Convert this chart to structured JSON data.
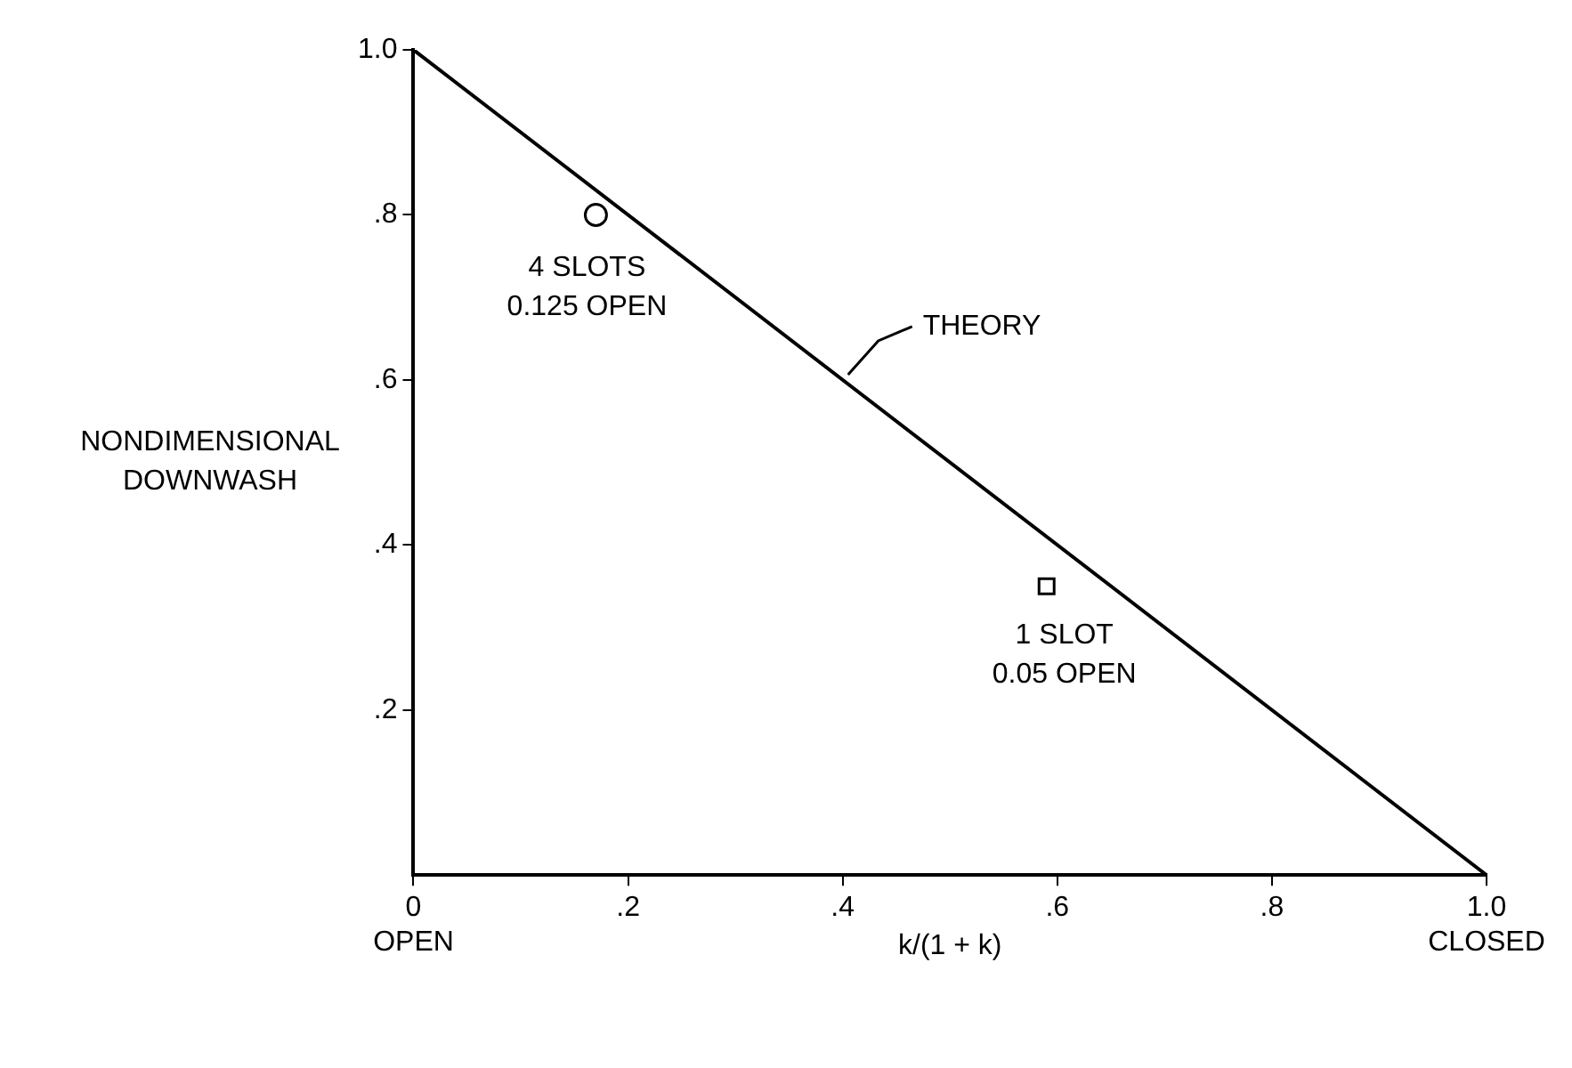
{
  "chart_data": {
    "type": "scatter",
    "xlabel": "k/(1 + k)",
    "ylabel": "NONDIMENSIONAL\nDOWNWASH",
    "xlim": [
      0,
      1
    ],
    "ylim": [
      0,
      1
    ],
    "xticks": [
      {
        "value": 0,
        "label": "0\nOPEN"
      },
      {
        "value": 0.2,
        "label": ".2"
      },
      {
        "value": 0.4,
        "label": ".4"
      },
      {
        "value": 0.6,
        "label": ".6"
      },
      {
        "value": 0.8,
        "label": ".8"
      },
      {
        "value": 1,
        "label": "1.0\nCLOSED"
      }
    ],
    "yticks": [
      {
        "value": 0.2,
        "label": ".2"
      },
      {
        "value": 0.4,
        "label": ".4"
      },
      {
        "value": 0.6,
        "label": ".6"
      },
      {
        "value": 0.8,
        "label": ".8"
      },
      {
        "value": 1,
        "label": "1.0"
      }
    ],
    "grid": false,
    "legend": false,
    "series": [
      {
        "type": "line",
        "color": "#000000",
        "x": [
          0,
          1
        ],
        "values": [
          1,
          0
        ],
        "marker": "none"
      },
      {
        "color": "#000000",
        "x": [
          0.17
        ],
        "values": [
          0.8
        ],
        "marker": "circle"
      },
      {
        "color": "#000000",
        "x": [
          0.59
        ],
        "values": [
          0.35
        ],
        "marker": "square"
      }
    ],
    "annotations": [
      {
        "text": "THEORY",
        "x": 0.4,
        "y": 0.6
      },
      {
        "text": "4 SLOTS\n0.125 OPEN",
        "x": 0.17,
        "y": 0.8
      },
      {
        "text": "1 SLOT\n0.05 OPEN",
        "x": 0.59,
        "y": 0.35
      }
    ]
  }
}
